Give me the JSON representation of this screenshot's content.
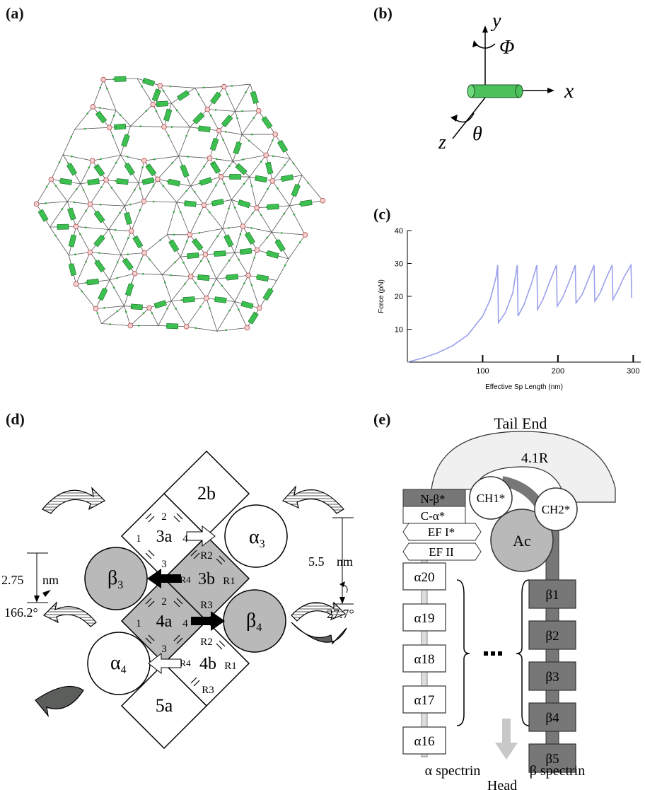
{
  "panels": {
    "a": {
      "label": "(a)"
    },
    "b": {
      "label": "(b)",
      "axes": {
        "y": "y",
        "x": "x",
        "z": "z",
        "phi": "Φ",
        "theta": "θ"
      }
    },
    "c": {
      "label": "(c)"
    },
    "d": {
      "label": "(d)",
      "blocks": {
        "b2b": "2b",
        "b3a": "3a",
        "b3b": "3b",
        "b4a": "4a",
        "b4b": "4b",
        "b5a": "5a"
      },
      "sides": {
        "s1": "1",
        "s2": "2",
        "s3": "3",
        "s4": "4"
      },
      "r_sides": {
        "r1": "R1",
        "r2": "R2",
        "r3": "R3",
        "r4": "R4"
      },
      "circles": {
        "alpha3": "α",
        "alpha3_sub": "3",
        "alpha4": "α",
        "alpha4_sub": "4",
        "beta3": "β",
        "beta3_sub": "3",
        "beta4": "β",
        "beta4_sub": "4"
      },
      "dims": {
        "left_len": "2.75",
        "left_unit": "nm",
        "left_angle": "166.2°",
        "right_len": "5.5",
        "right_unit": "nm",
        "right_angle": "27.7°"
      }
    },
    "e": {
      "label": "(e)",
      "tail": "Tail End",
      "head": "Head",
      "band": "4.1R",
      "ch1": "CH1*",
      "ch2": "CH2*",
      "ac": "Ac",
      "left_domains": [
        "N-β*",
        "C-α*",
        "EF I*",
        "EF II"
      ],
      "alpha": [
        "α20",
        "α19",
        "α18",
        "α17",
        "α16"
      ],
      "beta": [
        "β1",
        "β2",
        "β3",
        "β4",
        "β5"
      ],
      "alpha_caption": "α spectrin",
      "beta_caption": "β spectrin"
    }
  },
  "chart_data": {
    "type": "line",
    "title": "",
    "xlabel": "Effective Sp Length (nm)",
    "ylabel": "Force (pN)",
    "xlim": [
      0,
      310
    ],
    "ylim": [
      0,
      40
    ],
    "xticks": [
      "100",
      "200",
      "300"
    ],
    "yticks": [
      "10",
      "20",
      "30",
      "40"
    ],
    "color": "#9aa0ec",
    "series": [
      {
        "x": [
          0,
          20,
          40,
          60,
          80,
          100,
          110,
          118,
          120,
          121,
          130,
          140,
          146,
          147,
          155,
          165,
          172,
          173,
          180,
          190,
          198,
          199,
          206,
          215,
          223,
          224,
          232,
          240,
          248,
          249,
          256,
          264,
          272,
          273,
          280,
          288,
          297,
          298
        ],
        "y": [
          0,
          1.2,
          2.8,
          5,
          8.2,
          14,
          19,
          26,
          29.5,
          12,
          15,
          21,
          29.5,
          14,
          17.5,
          24,
          29.5,
          16,
          19,
          25,
          29.5,
          17,
          19.5,
          24.5,
          29.5,
          18,
          20.5,
          25,
          29.5,
          18.5,
          21,
          25.5,
          29.5,
          19,
          22,
          26,
          29.5,
          19.5
        ]
      }
    ]
  }
}
